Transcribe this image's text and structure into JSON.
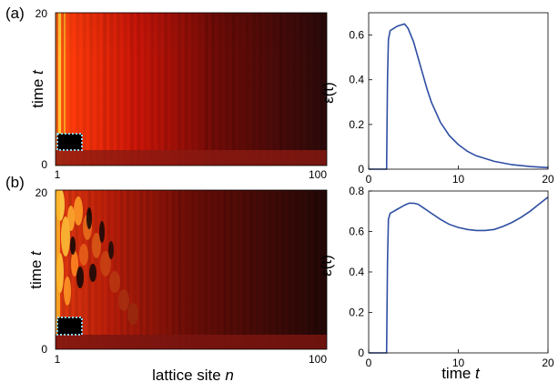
{
  "panels": [
    {
      "label": "(a)",
      "heatmap": {
        "type": "heatmap",
        "ylabel_text": "time ",
        "ylabel_var": "t",
        "xlabel_text": "",
        "xlabel_var": "",
        "x_ticks": [
          "1",
          "100"
        ],
        "y_ticks": [
          "0",
          "20"
        ],
        "xlim": [
          1,
          100
        ],
        "ylim": [
          0,
          20
        ],
        "colormap": "hot (black → red → yellow)",
        "highlight_box": {
          "x": [
            1,
            4
          ],
          "y": [
            2,
            5
          ],
          "color": "#8fd0e8",
          "style": "dotted"
        }
      },
      "line": {
        "type": "line",
        "ylabel_text": "ε(t)",
        "xlabel_text": "",
        "xlabel_var": "",
        "x_ticks": [
          "0",
          "10",
          "20"
        ],
        "y_ticks": [
          "0",
          "0.2",
          "0.4",
          "0.6"
        ],
        "xlim": [
          0,
          20
        ],
        "ylim": [
          0,
          0.7
        ],
        "color": "#2e4ea3",
        "x": [
          0,
          2.0,
          2.1,
          2.2,
          2.4,
          2.8,
          3.2,
          3.6,
          4.0,
          4.4,
          5.0,
          5.5,
          6.0,
          6.5,
          7.0,
          8.0,
          9.0,
          10.0,
          11.0,
          12.0,
          14.0,
          16.0,
          18.0,
          20.0
        ],
        "y": [
          0,
          0,
          0.4,
          0.58,
          0.62,
          0.63,
          0.64,
          0.645,
          0.65,
          0.63,
          0.57,
          0.5,
          0.43,
          0.36,
          0.3,
          0.21,
          0.15,
          0.11,
          0.08,
          0.06,
          0.035,
          0.02,
          0.012,
          0.007
        ]
      }
    },
    {
      "label": "(b)",
      "heatmap": {
        "type": "heatmap",
        "ylabel_text": "time ",
        "ylabel_var": "t",
        "xlabel_text": "lattice site ",
        "xlabel_var": "n",
        "x_ticks": [
          "1",
          "100"
        ],
        "y_ticks": [
          "0",
          "20"
        ],
        "xlim": [
          1,
          100
        ],
        "ylim": [
          0,
          20
        ],
        "colormap": "hot (black → red → yellow)",
        "highlight_box": {
          "x": [
            1,
            4
          ],
          "y": [
            2,
            5
          ],
          "color": "#8fd0e8",
          "style": "dotted"
        }
      },
      "line": {
        "type": "line",
        "ylabel_text": "ε(t)",
        "xlabel_text": "time ",
        "xlabel_var": "t",
        "x_ticks": [
          "0",
          "10",
          "20"
        ],
        "y_ticks": [
          "0",
          "0.2",
          "0.4",
          "0.6",
          "0.8"
        ],
        "xlim": [
          0,
          20
        ],
        "ylim": [
          0,
          0.8
        ],
        "color": "#2e4ea3",
        "x": [
          0,
          2.0,
          2.1,
          2.2,
          2.4,
          2.8,
          3.2,
          3.6,
          4.0,
          4.5,
          5.0,
          5.5,
          6.0,
          7.0,
          8.0,
          9.0,
          10.0,
          11.0,
          12.0,
          13.0,
          14.0,
          15.0,
          16.0,
          17.0,
          18.0,
          19.0,
          20.0
        ],
        "y": [
          0,
          0,
          0.45,
          0.66,
          0.69,
          0.7,
          0.71,
          0.72,
          0.73,
          0.74,
          0.74,
          0.735,
          0.72,
          0.69,
          0.66,
          0.635,
          0.62,
          0.61,
          0.605,
          0.605,
          0.61,
          0.625,
          0.645,
          0.67,
          0.7,
          0.735,
          0.77
        ]
      }
    }
  ]
}
